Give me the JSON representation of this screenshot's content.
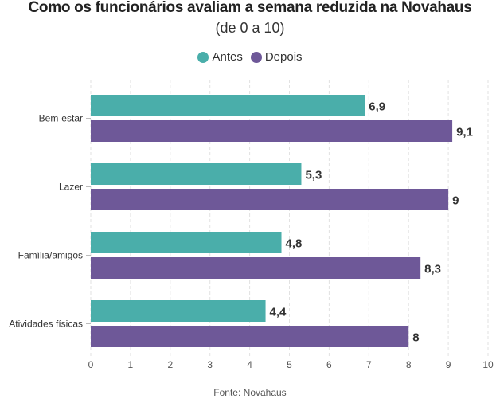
{
  "chart_data": {
    "type": "bar",
    "orientation": "horizontal",
    "title": "Como os funcionários avaliam a semana reduzida na Novahaus",
    "subtitle": "(de 0 a 10)",
    "categories": [
      "Bem-estar",
      "Lazer",
      "Família/amigos",
      "Atividades físicas"
    ],
    "series": [
      {
        "name": "Antes",
        "color": "#4aaeaa",
        "values": [
          6.9,
          5.3,
          4.8,
          4.4
        ],
        "labels": [
          "6,9",
          "5,3",
          "4,8",
          "4,4"
        ]
      },
      {
        "name": "Depois",
        "color": "#6e5898",
        "values": [
          9.1,
          9,
          8.3,
          8
        ],
        "labels": [
          "9,1",
          "9",
          "8,3",
          "8"
        ]
      }
    ],
    "xlim": [
      0,
      10
    ],
    "xticks": [
      "0",
      "1",
      "2",
      "3",
      "4",
      "5",
      "6",
      "7",
      "8",
      "9",
      "10"
    ],
    "grid": true,
    "legend_position": "top-center",
    "source": "Fonte: Novahaus"
  }
}
